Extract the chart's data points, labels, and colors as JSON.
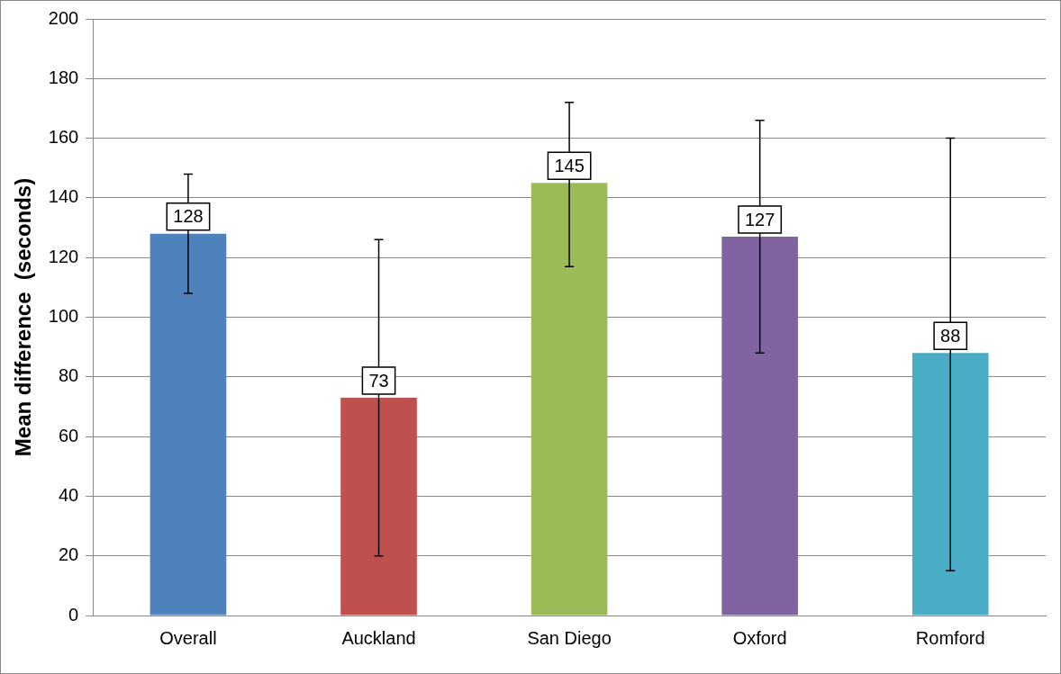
{
  "chart_data": {
    "type": "bar",
    "ylabel": "Mean difference  (seconds)",
    "categories": [
      "Overall",
      "Auckland",
      "San Diego",
      "Oxford",
      "Romford"
    ],
    "values": [
      128,
      73,
      145,
      127,
      88
    ],
    "colors": [
      "#4f81bd",
      "#c0504d",
      "#9bbb59",
      "#8064a2",
      "#4bacc6"
    ],
    "errors": [
      [
        108,
        148
      ],
      [
        20,
        126
      ],
      [
        117,
        172
      ],
      [
        88,
        166
      ],
      [
        15,
        160
      ]
    ],
    "ylim": [
      0,
      200
    ],
    "yticks": [
      0,
      20,
      40,
      60,
      80,
      100,
      120,
      140,
      160,
      180,
      200
    ],
    "grid": "y",
    "legend": false,
    "data_labels": true
  }
}
